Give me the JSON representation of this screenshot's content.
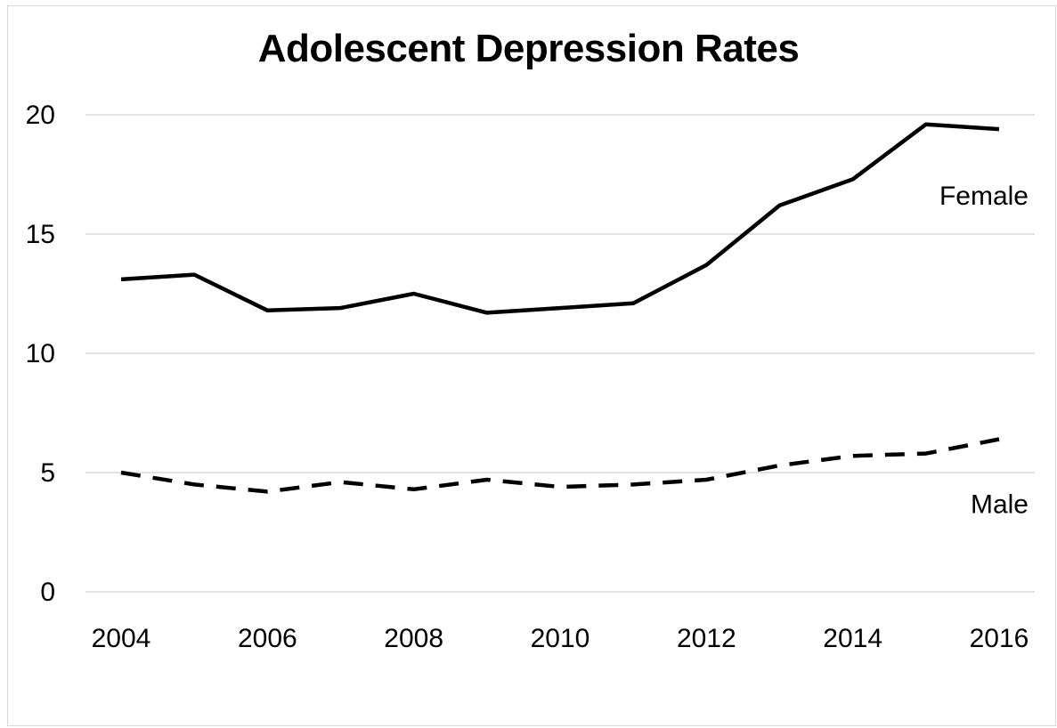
{
  "chart_data": {
    "type": "line",
    "title": "Adolescent Depression Rates",
    "xlabel": "",
    "ylabel": "",
    "x": [
      2004,
      2005,
      2006,
      2007,
      2008,
      2009,
      2010,
      2011,
      2012,
      2013,
      2014,
      2015,
      2016
    ],
    "x_ticks": [
      "2004",
      "2006",
      "2008",
      "2010",
      "2012",
      "2014",
      "2016"
    ],
    "y_ticks": [
      "0",
      "5",
      "10",
      "15",
      "20"
    ],
    "xlim": [
      2004,
      2016
    ],
    "ylim": [
      0,
      20
    ],
    "grid": "horizontal",
    "legend": "none",
    "series": [
      {
        "name": "Female",
        "line_style": "solid",
        "color": "#000000",
        "values": [
          13.1,
          13.3,
          11.8,
          11.9,
          12.5,
          11.7,
          11.9,
          12.1,
          13.7,
          16.2,
          17.3,
          19.6,
          19.4
        ]
      },
      {
        "name": "Male",
        "line_style": "dashed",
        "color": "#000000",
        "values": [
          5.0,
          4.5,
          4.2,
          4.6,
          4.3,
          4.7,
          4.4,
          4.5,
          4.7,
          5.3,
          5.7,
          5.8,
          6.4
        ]
      }
    ]
  }
}
